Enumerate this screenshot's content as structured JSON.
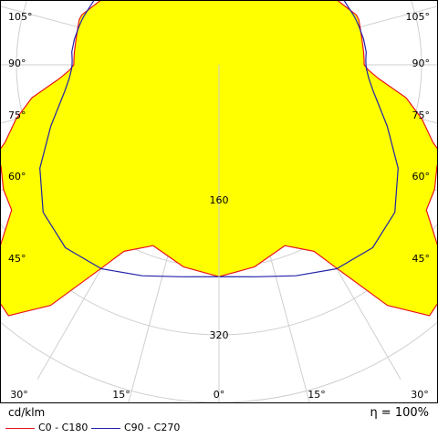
{
  "chart_data": {
    "type": "polar",
    "unit": "cd/klm",
    "efficiency": "η = 100%",
    "radial_ticks": [
      160,
      320
    ],
    "radial_tick_labels": [
      "160",
      "320"
    ],
    "r_max": 430,
    "angle_labels": [
      {
        "text": "105°",
        "angle": 105
      },
      {
        "text": "90°",
        "angle": 90
      },
      {
        "text": "75°",
        "angle": 75
      },
      {
        "text": "60°",
        "angle": 60
      },
      {
        "text": "45°",
        "angle": 45
      },
      {
        "text": "30°",
        "angle": 30
      },
      {
        "text": "15°",
        "angle": 15
      },
      {
        "text": "0°",
        "angle": 0
      }
    ],
    "grid": true,
    "series": [
      {
        "name": "C0 - C180",
        "color": "#e8141c",
        "fill": "#ffff00",
        "points": [
          [
            0,
            251
          ],
          [
            10,
            243
          ],
          [
            20,
            228
          ],
          [
            27,
            248
          ],
          [
            30,
            278
          ],
          [
            35,
            348
          ],
          [
            40,
            388
          ],
          [
            45,
            380
          ],
          [
            50,
            340
          ],
          [
            55,
            300
          ],
          [
            60,
            295
          ],
          [
            65,
            285
          ],
          [
            68,
            285
          ],
          [
            70,
            270
          ],
          [
            75,
            249
          ],
          [
            80,
            225
          ],
          [
            85,
            190
          ],
          [
            88,
            177
          ],
          [
            90,
            172
          ],
          [
            92,
            172
          ],
          [
            95,
            172
          ],
          [
            100,
            172
          ],
          [
            105,
            173
          ],
          [
            108,
            174
          ],
          [
            110,
            173
          ],
          [
            120,
            158
          ],
          [
            135,
            145
          ],
          [
            145,
            136
          ],
          [
            155,
            128
          ],
          [
            165,
            128
          ],
          [
            175,
            125
          ],
          [
            180,
            127
          ]
        ]
      },
      {
        "name": "C90 - C270",
        "color": "#2222aa",
        "points": [
          [
            0,
            251
          ],
          [
            10,
            255
          ],
          [
            20,
            266
          ],
          [
            30,
            279
          ],
          [
            40,
            283
          ],
          [
            50,
            272
          ],
          [
            60,
            245
          ],
          [
            70,
            212
          ],
          [
            80,
            186
          ],
          [
            85,
            178
          ],
          [
            88,
            175
          ],
          [
            90,
            174
          ],
          [
            92,
            174
          ],
          [
            95,
            175
          ],
          [
            100,
            174
          ],
          [
            105,
            172
          ],
          [
            108,
            171
          ],
          [
            110,
            170
          ],
          [
            120,
            166
          ],
          [
            135,
            155
          ],
          [
            145,
            150
          ],
          [
            155,
            147
          ],
          [
            165,
            146
          ],
          [
            175,
            146
          ],
          [
            180,
            146
          ]
        ]
      }
    ]
  }
}
